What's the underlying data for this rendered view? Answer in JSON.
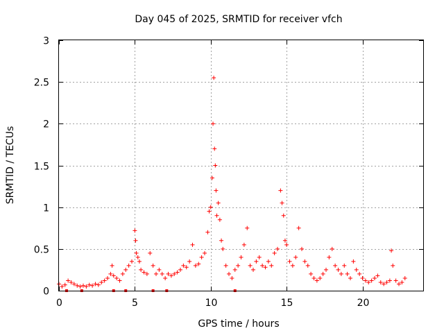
{
  "chart_data": {
    "type": "scatter",
    "title": "Day 045 of 2025, SRMTID for receiver vfch",
    "xlabel": "GPS time / hours",
    "ylabel": "SRMTID / TECUs",
    "xlim": [
      0,
      24
    ],
    "ylim": [
      0,
      3
    ],
    "xticks": [
      0,
      5,
      10,
      15,
      20
    ],
    "xtick_labels": [
      "0",
      "5",
      "10",
      "15",
      "20"
    ],
    "yticks": [
      0,
      0.5,
      1,
      1.5,
      2,
      2.5,
      3
    ],
    "ytick_labels": [
      "0",
      "0.5",
      "1",
      "1.5",
      "2",
      "2.5",
      "3"
    ],
    "grid": true,
    "marker": "+",
    "series": [
      {
        "name": "SRMTID",
        "color": "#ff0000",
        "x": [
          0.0,
          0.2,
          0.4,
          0.6,
          0.8,
          1.0,
          1.2,
          1.4,
          1.6,
          1.8,
          2.0,
          2.2,
          2.4,
          2.6,
          2.8,
          3.0,
          3.2,
          3.4,
          3.5,
          3.6,
          3.8,
          4.0,
          4.2,
          4.4,
          4.6,
          4.8,
          5.0,
          5.05,
          5.1,
          5.2,
          5.3,
          5.4,
          5.6,
          5.8,
          6.0,
          6.2,
          6.4,
          6.6,
          6.8,
          7.0,
          7.2,
          7.4,
          7.6,
          7.8,
          8.0,
          8.2,
          8.4,
          8.6,
          8.8,
          9.0,
          9.2,
          9.4,
          9.6,
          9.8,
          9.9,
          10.0,
          10.1,
          10.15,
          10.2,
          10.25,
          10.3,
          10.35,
          10.4,
          10.5,
          10.6,
          10.7,
          10.8,
          11.0,
          11.2,
          11.4,
          11.6,
          11.8,
          12.0,
          12.2,
          12.4,
          12.6,
          12.8,
          13.0,
          13.2,
          13.4,
          13.6,
          13.8,
          14.0,
          14.2,
          14.4,
          14.6,
          14.7,
          14.8,
          14.9,
          15.0,
          15.2,
          15.4,
          15.6,
          15.8,
          16.0,
          16.2,
          16.4,
          16.6,
          16.8,
          17.0,
          17.2,
          17.4,
          17.6,
          17.8,
          18.0,
          18.2,
          18.4,
          18.6,
          18.8,
          19.0,
          19.2,
          19.4,
          19.6,
          19.8,
          20.0,
          20.2,
          20.4,
          20.6,
          20.8,
          21.0,
          21.2,
          21.4,
          21.6,
          21.8,
          21.9,
          22.0,
          22.2,
          22.4,
          22.6,
          22.8
        ],
        "y": [
          0.08,
          0.05,
          0.07,
          0.12,
          0.1,
          0.08,
          0.06,
          0.05,
          0.06,
          0.05,
          0.07,
          0.06,
          0.08,
          0.07,
          0.1,
          0.12,
          0.15,
          0.2,
          0.3,
          0.18,
          0.15,
          0.12,
          0.2,
          0.25,
          0.3,
          0.35,
          0.72,
          0.6,
          0.45,
          0.4,
          0.35,
          0.25,
          0.22,
          0.2,
          0.45,
          0.3,
          0.2,
          0.25,
          0.2,
          0.15,
          0.2,
          0.18,
          0.2,
          0.22,
          0.25,
          0.3,
          0.28,
          0.35,
          0.55,
          0.3,
          0.32,
          0.4,
          0.45,
          0.7,
          0.95,
          1.0,
          1.35,
          2.0,
          2.55,
          1.7,
          1.5,
          1.2,
          0.9,
          1.05,
          0.85,
          0.6,
          0.5,
          0.3,
          0.2,
          0.15,
          0.25,
          0.3,
          0.4,
          0.55,
          0.75,
          0.3,
          0.25,
          0.35,
          0.4,
          0.3,
          0.28,
          0.35,
          0.3,
          0.45,
          0.5,
          1.2,
          1.05,
          0.9,
          0.6,
          0.55,
          0.35,
          0.3,
          0.4,
          0.75,
          0.5,
          0.35,
          0.3,
          0.2,
          0.15,
          0.12,
          0.15,
          0.2,
          0.25,
          0.4,
          0.5,
          0.3,
          0.25,
          0.2,
          0.3,
          0.2,
          0.15,
          0.35,
          0.25,
          0.2,
          0.15,
          0.12,
          0.1,
          0.12,
          0.15,
          0.18,
          0.1,
          0.08,
          0.1,
          0.12,
          0.48,
          0.3,
          0.12,
          0.08,
          0.1,
          0.15
        ]
      }
    ],
    "zero_markers_x": [
      0.5,
      1.5,
      3.6,
      4.4,
      6.2,
      7.1,
      11.6
    ]
  }
}
